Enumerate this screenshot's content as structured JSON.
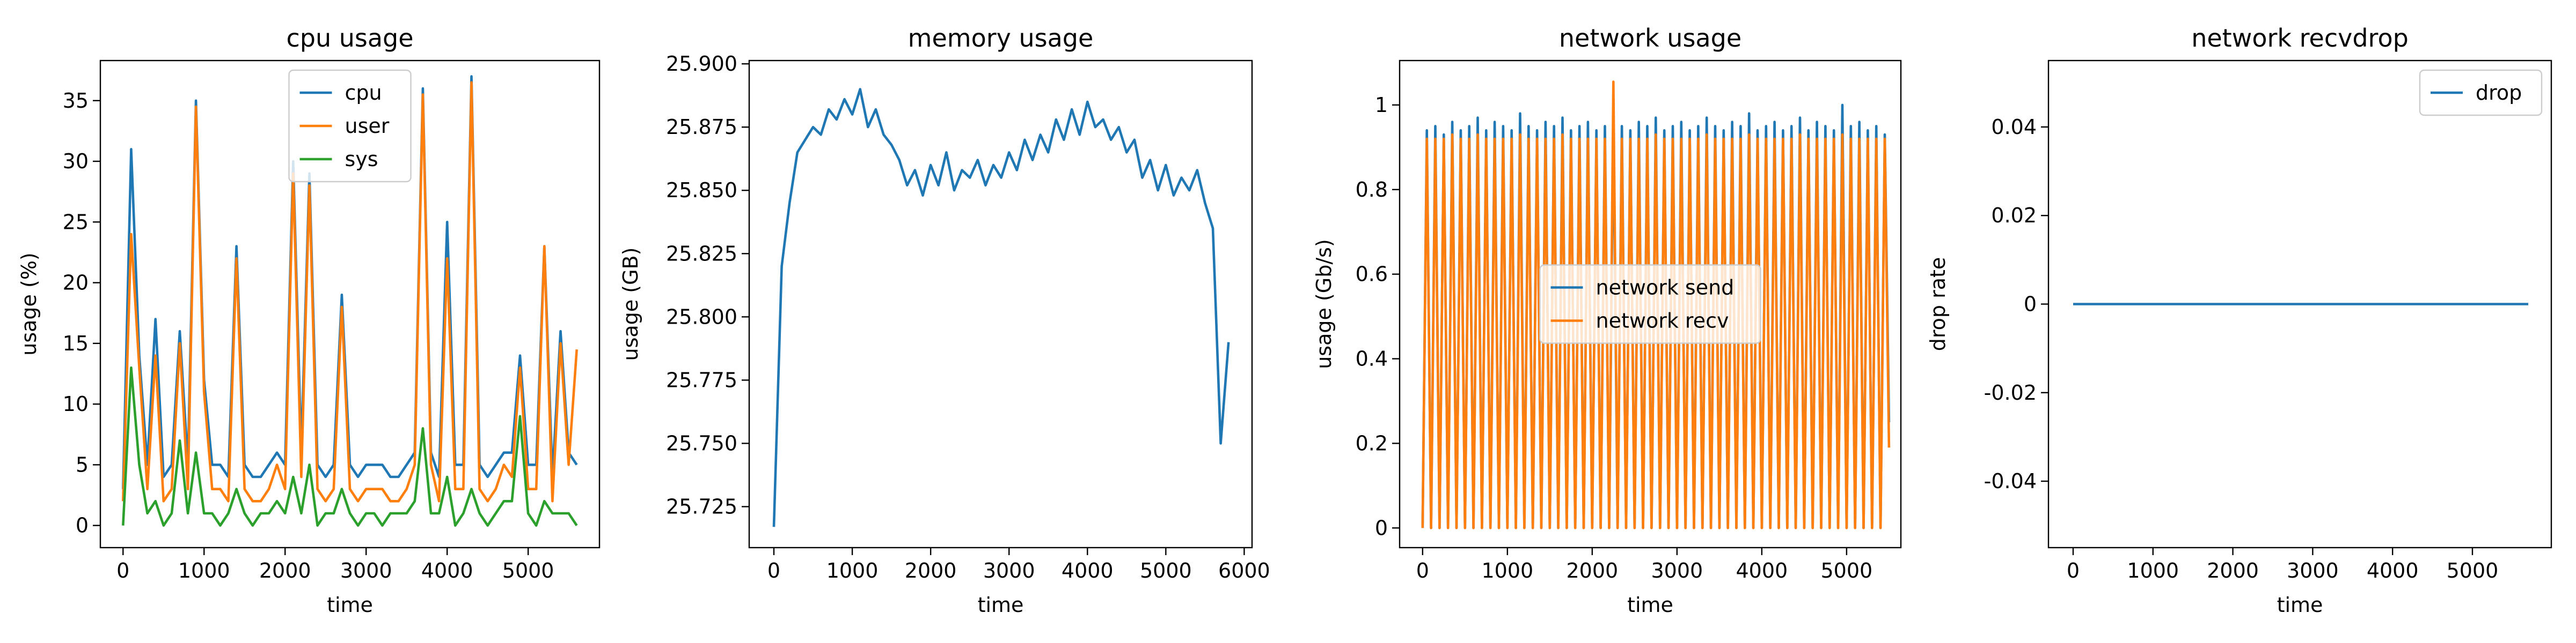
{
  "chart_data": [
    {
      "type": "line",
      "title": "cpu usage",
      "x_label": "time",
      "y_label": "usage (%)",
      "legend": "upper center",
      "x": [
        0,
        100,
        200,
        300,
        400,
        500,
        600,
        700,
        800,
        900,
        1000,
        1100,
        1200,
        1300,
        1400,
        1500,
        1600,
        1700,
        1800,
        1900,
        2000,
        2100,
        2200,
        2300,
        2400,
        2500,
        2600,
        2700,
        2800,
        2900,
        3000,
        3100,
        3200,
        3300,
        3400,
        3500,
        3600,
        3700,
        3800,
        3900,
        4000,
        4100,
        4200,
        4300,
        4400,
        4500,
        4600,
        4700,
        4800,
        4900,
        5000,
        5100,
        5200,
        5300,
        5400,
        5500,
        5600
      ],
      "series": [
        {
          "name": "cpu",
          "color": "#1f77b4",
          "values": [
            3,
            31,
            14,
            5,
            17,
            4,
            5,
            16,
            5,
            35,
            12,
            5,
            5,
            4,
            23,
            5,
            4,
            4,
            5,
            6,
            5,
            30,
            6,
            29,
            5,
            4,
            5,
            19,
            5,
            4,
            5,
            5,
            5,
            4,
            4,
            5,
            6,
            36,
            6,
            4,
            25,
            5,
            5,
            37,
            5,
            4,
            5,
            6,
            6,
            14,
            5,
            5,
            23,
            4,
            16,
            6,
            5
          ]
        },
        {
          "name": "user",
          "color": "#ff7f0e",
          "values": [
            2,
            24,
            13,
            3,
            14,
            2,
            3,
            15,
            3,
            34.5,
            11,
            3,
            3,
            2,
            22,
            3,
            2,
            2,
            3,
            5,
            3,
            29,
            4,
            28,
            3,
            2,
            3,
            18,
            3,
            2,
            3,
            3,
            3,
            2,
            2,
            3,
            5,
            35.5,
            5,
            2,
            22,
            3,
            3,
            36.5,
            3,
            2,
            3,
            5,
            4,
            13,
            3,
            3,
            23,
            2,
            15,
            5,
            14.5
          ]
        },
        {
          "name": "sys",
          "color": "#2ca02c",
          "values": [
            0,
            13,
            5,
            1,
            2,
            0,
            1,
            7,
            1,
            6,
            1,
            1,
            0,
            1,
            3,
            1,
            0,
            1,
            1,
            2,
            1,
            4,
            1,
            5,
            0,
            1,
            1,
            3,
            1,
            0,
            1,
            1,
            0,
            1,
            1,
            1,
            2,
            8,
            1,
            1,
            4,
            0,
            1,
            3,
            1,
            0,
            1,
            2,
            2,
            9,
            1,
            0,
            2,
            1,
            1,
            1,
            0
          ]
        }
      ],
      "xlim": [
        -280,
        5880
      ],
      "xticks": [
        0,
        1000,
        2000,
        3000,
        4000,
        5000
      ],
      "ylim": [
        -1.825,
        38.3
      ],
      "yticks": [
        0,
        5,
        10,
        15,
        20,
        25,
        30,
        35
      ]
    },
    {
      "type": "line",
      "title": "memory usage",
      "x_label": "time",
      "y_label": "usage (GB)",
      "x": [
        0,
        100,
        200,
        300,
        400,
        500,
        600,
        700,
        800,
        900,
        1000,
        1100,
        1200,
        1300,
        1400,
        1500,
        1600,
        1700,
        1800,
        1900,
        2000,
        2100,
        2200,
        2300,
        2400,
        2500,
        2600,
        2700,
        2800,
        2900,
        3000,
        3100,
        3200,
        3300,
        3400,
        3500,
        3600,
        3700,
        3800,
        3900,
        4000,
        4100,
        4200,
        4300,
        4400,
        4500,
        4600,
        4700,
        4800,
        4900,
        5000,
        5100,
        5200,
        5300,
        5400,
        5500,
        5600,
        5700,
        5800
      ],
      "series": [
        {
          "color": "#1f77b4",
          "values": [
            25.717,
            25.82,
            25.845,
            25.865,
            25.87,
            25.875,
            25.872,
            25.882,
            25.878,
            25.886,
            25.88,
            25.89,
            25.875,
            25.882,
            25.872,
            25.868,
            25.862,
            25.852,
            25.858,
            25.848,
            25.86,
            25.852,
            25.865,
            25.85,
            25.858,
            25.855,
            25.862,
            25.852,
            25.86,
            25.855,
            25.865,
            25.858,
            25.87,
            25.862,
            25.872,
            25.865,
            25.878,
            25.87,
            25.882,
            25.872,
            25.885,
            25.875,
            25.878,
            25.87,
            25.875,
            25.865,
            25.87,
            25.855,
            25.862,
            25.85,
            25.86,
            25.848,
            25.855,
            25.85,
            25.858,
            25.845,
            25.835,
            25.75,
            25.79
          ]
        }
      ],
      "xlim": [
        -315,
        6100
      ],
      "xticks": [
        0,
        1000,
        2000,
        3000,
        4000,
        5000,
        6000
      ],
      "ylim": [
        25.7088,
        25.9013
      ],
      "yticks": [
        {
          "value": 25.725,
          "label": "25.725"
        },
        {
          "value": 25.75,
          "label": "25.750"
        },
        {
          "value": 25.775,
          "label": "25.775"
        },
        {
          "value": 25.8,
          "label": "25.800"
        },
        {
          "value": 25.825,
          "label": "25.825"
        },
        {
          "value": 25.85,
          "label": "25.850"
        },
        {
          "value": 25.875,
          "label": "25.875"
        },
        {
          "value": 25.9,
          "label": "25.900"
        }
      ]
    },
    {
      "type": "line",
      "title": "network usage",
      "x_label": "time",
      "y_label": "usage (Gb/s)",
      "legend": "center",
      "x": [
        0,
        50,
        100,
        150,
        200,
        250,
        300,
        350,
        400,
        450,
        500,
        550,
        600,
        650,
        700,
        750,
        800,
        850,
        900,
        950,
        1000,
        1050,
        1100,
        1150,
        1200,
        1250,
        1300,
        1350,
        1400,
        1450,
        1500,
        1550,
        1600,
        1650,
        1700,
        1750,
        1800,
        1850,
        1900,
        1950,
        2000,
        2050,
        2100,
        2150,
        2200,
        2250,
        2300,
        2350,
        2400,
        2450,
        2500,
        2550,
        2600,
        2650,
        2700,
        2750,
        2800,
        2850,
        2900,
        2950,
        3000,
        3050,
        3100,
        3150,
        3200,
        3250,
        3300,
        3350,
        3400,
        3450,
        3500,
        3550,
        3600,
        3650,
        3700,
        3750,
        3800,
        3850,
        3900,
        3950,
        4000,
        4050,
        4100,
        4150,
        4200,
        4250,
        4300,
        4350,
        4400,
        4450,
        4500,
        4550,
        4600,
        4650,
        4700,
        4750,
        4800,
        4850,
        4900,
        4950,
        5000,
        5050,
        5100,
        5150,
        5200,
        5250,
        5300,
        5350,
        5400,
        5450,
        5500
      ],
      "series": [
        {
          "name": "network send",
          "color": "#1f77b4",
          "values": [
            0,
            0.94,
            0,
            0.95,
            0,
            0.93,
            0,
            0.96,
            0,
            0.94,
            0,
            0.95,
            0,
            0.97,
            0,
            0.94,
            0,
            0.96,
            0,
            0.95,
            0,
            0.94,
            0,
            0.98,
            0,
            0.95,
            0,
            0.94,
            0,
            0.96,
            0,
            0.95,
            0,
            0.97,
            0,
            0.94,
            0,
            0.95,
            0,
            0.96,
            0,
            0.94,
            0,
            0.95,
            0,
            0.99,
            0,
            0.95,
            0,
            0.94,
            0,
            0.96,
            0,
            0.95,
            0,
            0.97,
            0,
            0.94,
            0,
            0.95,
            0,
            0.96,
            0,
            0.94,
            0,
            0.95,
            0,
            0.97,
            0,
            0.95,
            0,
            0.94,
            0,
            0.96,
            0,
            0.95,
            0,
            0.98,
            0,
            0.94,
            0,
            0.95,
            0,
            0.96,
            0,
            0.94,
            0,
            0.95,
            0,
            0.97,
            0,
            0.94,
            0,
            0.96,
            0,
            0.95,
            0,
            0.94,
            0,
            1.0,
            0,
            0.95,
            0,
            0.96,
            0,
            0.94,
            0,
            0.95,
            0,
            0.93,
            0.25
          ]
        },
        {
          "name": "network recv",
          "color": "#ff7f0e",
          "values": [
            0,
            0.92,
            0,
            0.92,
            0,
            0.92,
            0,
            0.93,
            0,
            0.92,
            0,
            0.92,
            0,
            0.93,
            0,
            0.92,
            0,
            0.92,
            0,
            0.92,
            0,
            0.92,
            0,
            0.93,
            0,
            0.92,
            0,
            0.92,
            0,
            0.92,
            0,
            0.92,
            0,
            0.93,
            0,
            0.92,
            0,
            0.92,
            0,
            0.92,
            0,
            0.92,
            0,
            0.92,
            0,
            1.055,
            0,
            0.92,
            0,
            0.92,
            0,
            0.92,
            0,
            0.92,
            0,
            0.93,
            0,
            0.92,
            0,
            0.92,
            0,
            0.92,
            0,
            0.92,
            0,
            0.92,
            0,
            0.93,
            0,
            0.92,
            0,
            0.92,
            0,
            0.92,
            0,
            0.92,
            0,
            0.93,
            0,
            0.92,
            0,
            0.92,
            0,
            0.92,
            0,
            0.92,
            0,
            0.92,
            0,
            0.93,
            0,
            0.92,
            0,
            0.92,
            0,
            0.92,
            0,
            0.92,
            0,
            0.93,
            0,
            0.92,
            0,
            0.92,
            0,
            0.92,
            0,
            0.92,
            0,
            0.92,
            0.19
          ]
        }
      ],
      "xlim": [
        -271,
        5640
      ],
      "xticks": [
        0,
        1000,
        2000,
        3000,
        4000,
        5000
      ],
      "ylim": [
        -0.0465,
        1.105
      ],
      "yticks": [
        0.0,
        0.2,
        0.4,
        0.6,
        0.8,
        1.0
      ]
    },
    {
      "type": "line",
      "title": "network recvdrop",
      "x_label": "time",
      "y_label": "drop rate",
      "legend": "upper right",
      "x": [
        0,
        5700
      ],
      "series": [
        {
          "name": "drop",
          "color": "#1f77b4",
          "values": [
            0,
            0
          ]
        }
      ],
      "xlim": [
        -309,
        5988
      ],
      "xticks": [
        0,
        1000,
        2000,
        3000,
        4000,
        5000
      ],
      "ylim": [
        -0.055,
        0.055
      ],
      "yticks": [
        -0.04,
        -0.02,
        0.0,
        0.02,
        0.04
      ]
    }
  ]
}
